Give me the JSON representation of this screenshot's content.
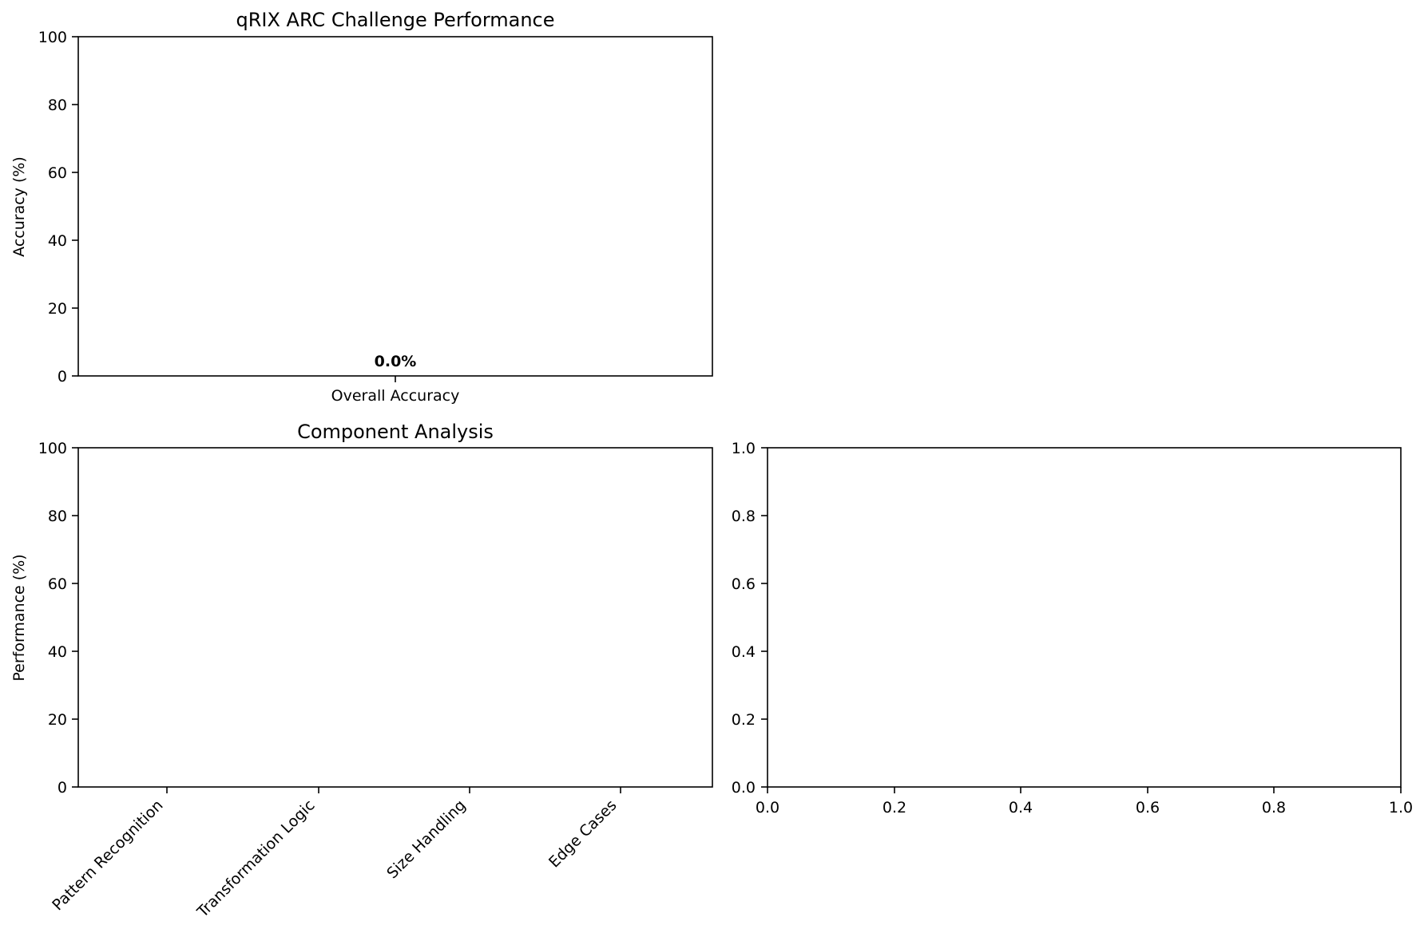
{
  "chart_data": [
    {
      "id": "overall",
      "type": "bar",
      "title": "qRIX ARC Challenge Performance",
      "xlabel": "",
      "ylabel": "Accuracy (%)",
      "categories": [
        "Overall Accuracy"
      ],
      "values": [
        0.0
      ],
      "data_labels": [
        "0.0%"
      ],
      "yticks": [
        "0",
        "20",
        "40",
        "60",
        "80",
        "100"
      ],
      "ylim": [
        0,
        100
      ],
      "grid": false
    },
    {
      "id": "components",
      "type": "bar",
      "title": "Component Analysis",
      "xlabel": "",
      "ylabel": "Performance (%)",
      "categories": [
        "Pattern Recognition",
        "Transformation Logic",
        "Size Handling",
        "Edge Cases"
      ],
      "values": [
        0,
        0,
        0,
        0
      ],
      "yticks": [
        "0",
        "20",
        "40",
        "60",
        "80",
        "100"
      ],
      "ylim": [
        0,
        100
      ],
      "grid": false
    },
    {
      "id": "empty",
      "type": "scatter",
      "title": "",
      "xlabel": "",
      "ylabel": "",
      "xticks": [
        "0.0",
        "0.2",
        "0.4",
        "0.6",
        "0.8",
        "1.0"
      ],
      "yticks": [
        "0.0",
        "0.2",
        "0.4",
        "0.6",
        "0.8",
        "1.0"
      ],
      "xlim": [
        0,
        1
      ],
      "ylim": [
        0,
        1
      ],
      "grid": false
    }
  ]
}
